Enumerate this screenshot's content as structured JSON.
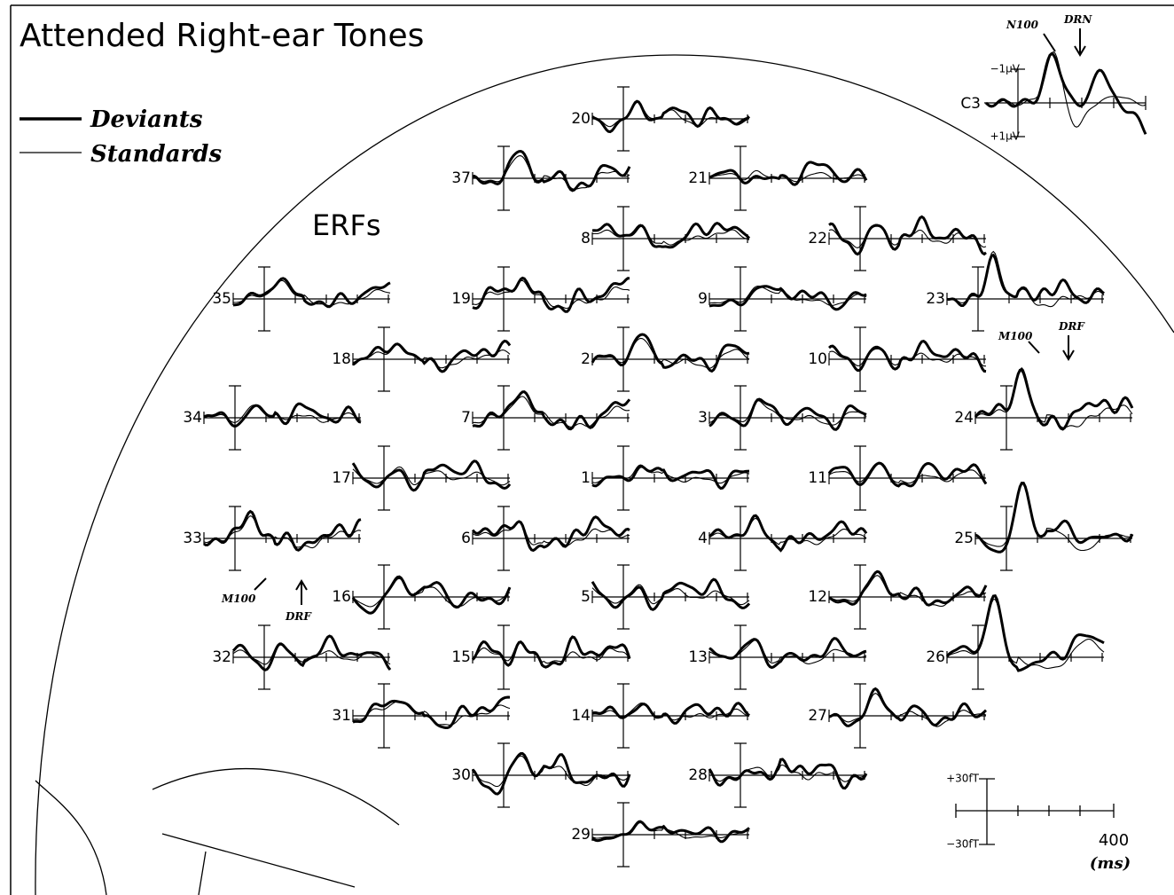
{
  "title": "Attended Right-ear Tones",
  "legend": {
    "deviants": "Deviants",
    "standards": "Standards"
  },
  "subtitle": "ERFs",
  "channels": [
    "20",
    "37",
    "21",
    "8",
    "22",
    "35",
    "19",
    "9",
    "23",
    "18",
    "2",
    "10",
    "34",
    "7",
    "3",
    "24",
    "17",
    "1",
    "11",
    "33",
    "6",
    "4",
    "25",
    "16",
    "5",
    "12",
    "32",
    "15",
    "13",
    "26",
    "31",
    "14",
    "27",
    "30",
    "28",
    "29"
  ],
  "inset": {
    "channel": "C3",
    "neg": "−1µV",
    "pos": "+1µV",
    "n100": "N100",
    "drn": "DRN"
  },
  "annotations": {
    "m100_24": "M100",
    "drf_24": "DRF",
    "m100_33": "M100",
    "drf_33": "DRF"
  },
  "scale": {
    "top": "+30fT",
    "bottom": "−30fT",
    "time": "400",
    "unit": "(ms)"
  }
}
